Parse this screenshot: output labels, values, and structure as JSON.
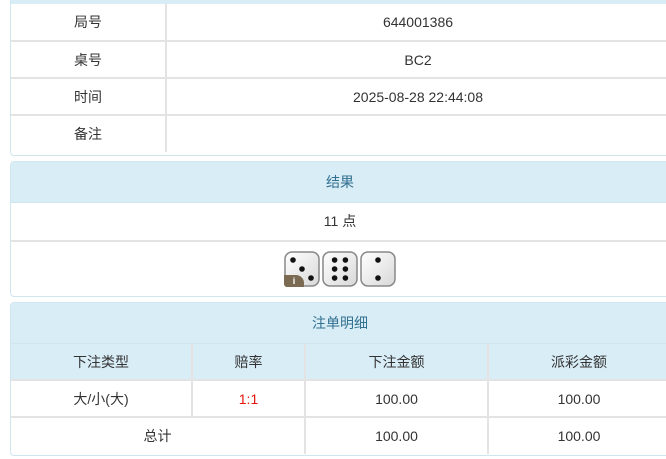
{
  "info": {
    "rows": [
      {
        "label": "局号",
        "value": "644001386"
      },
      {
        "label": "桌号",
        "value": "BC2"
      },
      {
        "label": "时间",
        "value": "2025-08-28 22:44:08"
      },
      {
        "label": "备注",
        "value": ""
      }
    ]
  },
  "result": {
    "title": "结果",
    "points": "11 点",
    "dice": [
      3,
      6,
      2
    ],
    "info_badge": "i"
  },
  "bets": {
    "title": "注单明细",
    "columns": [
      "下注类型",
      "赔率",
      "下注金额",
      "派彩金额"
    ],
    "rows": [
      {
        "type": "大/小(大)",
        "odds": "1:1",
        "amount": "100.00",
        "payout": "100.00"
      }
    ],
    "total": {
      "label": "总计",
      "amount": "100.00",
      "payout": "100.00"
    }
  },
  "colors": {
    "header_bg": "#d9edf7",
    "header_text": "#31708f",
    "odds": "#e4140a"
  }
}
